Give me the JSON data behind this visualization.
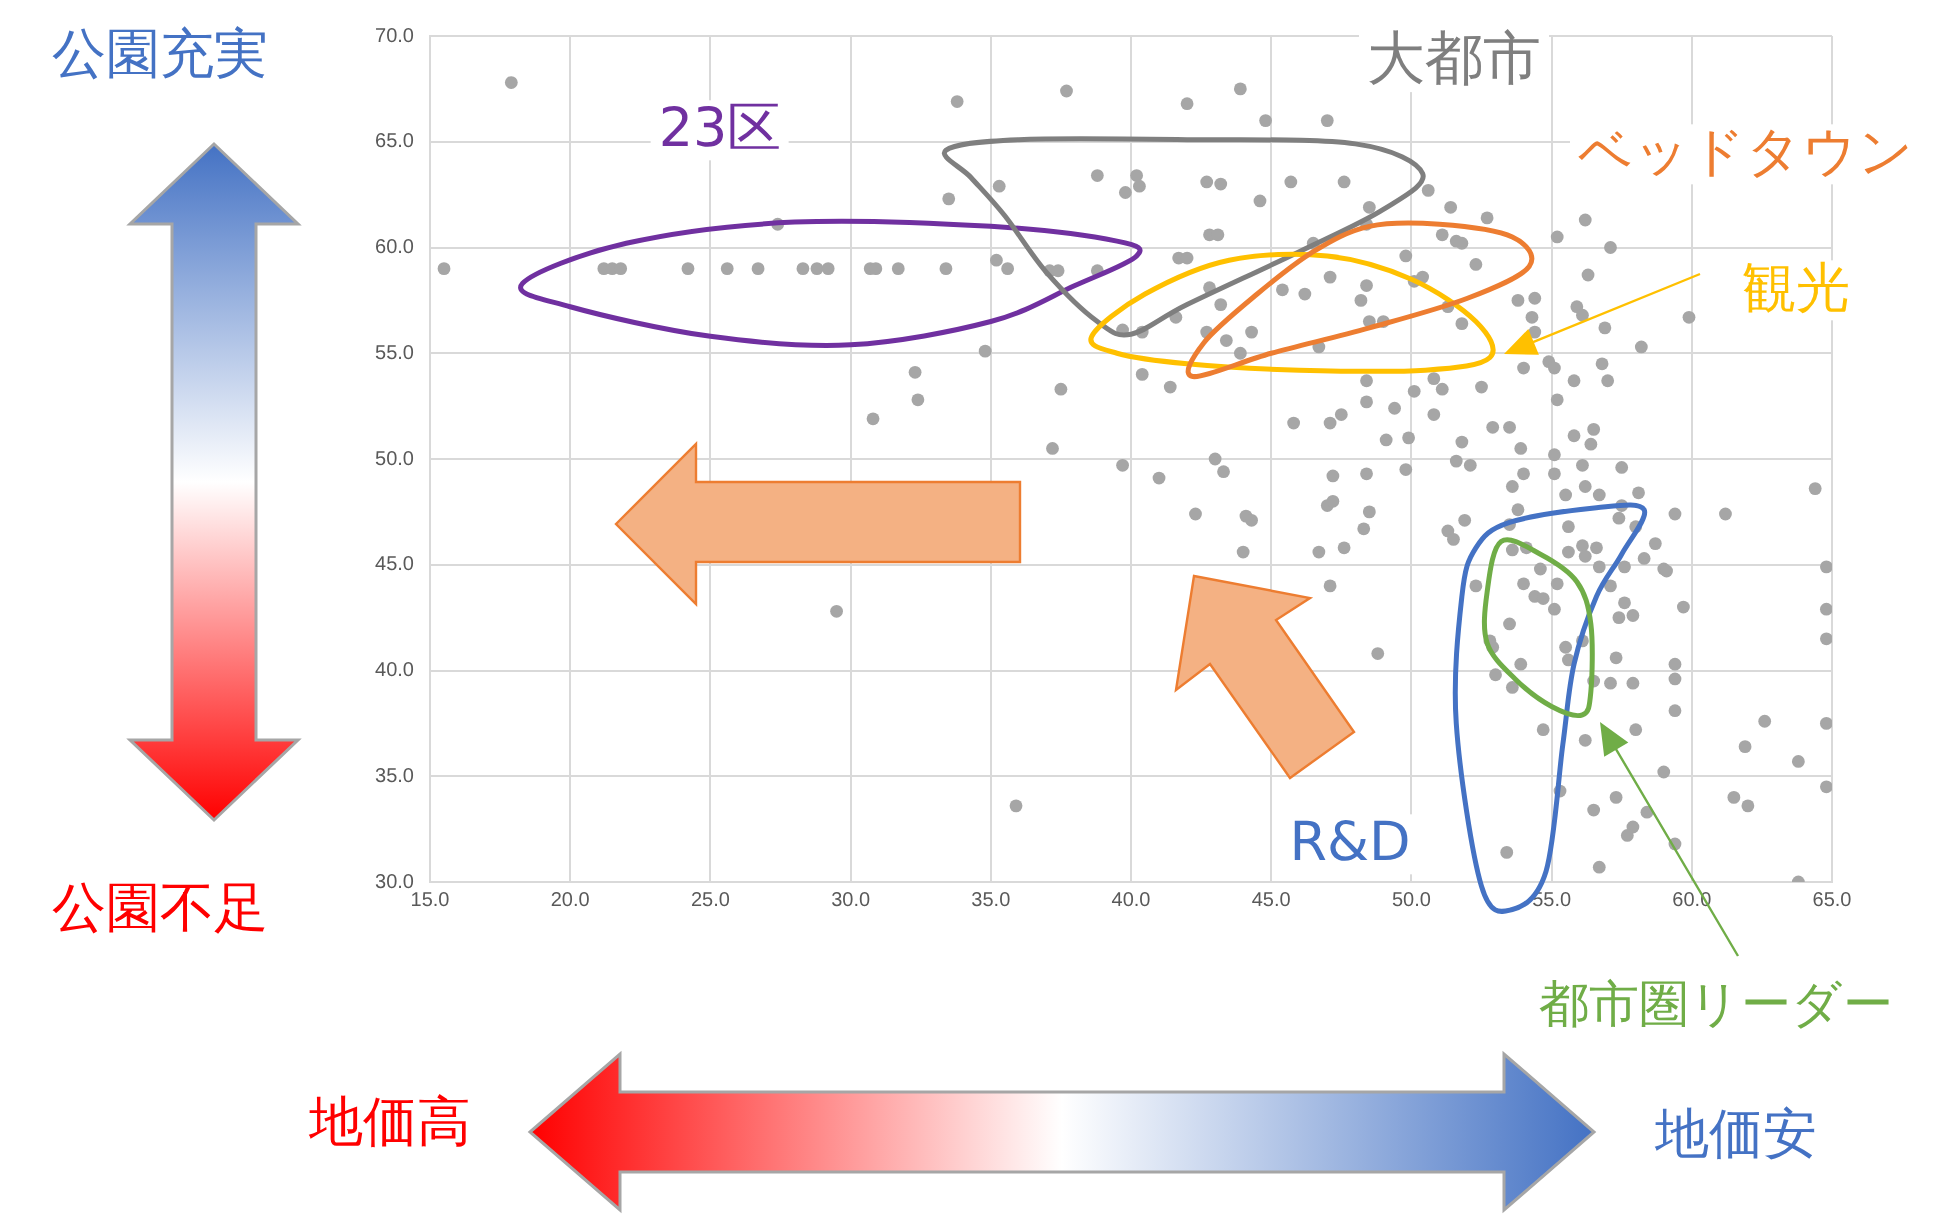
{
  "chart_data": {
    "type": "scatter",
    "color": "#a6a6a6",
    "marker": "circle",
    "grid": true,
    "xlim": [
      15,
      65
    ],
    "ylim": [
      30,
      70
    ],
    "xticks": [
      {
        "value": 15,
        "label": "15.0"
      },
      {
        "value": 20,
        "label": "20.0"
      },
      {
        "value": 25,
        "label": "25.0"
      },
      {
        "value": 30,
        "label": "30.0"
      },
      {
        "value": 35,
        "label": "35.0"
      },
      {
        "value": 40,
        "label": "40.0"
      },
      {
        "value": 45,
        "label": "45.0"
      },
      {
        "value": 50,
        "label": "50.0"
      },
      {
        "value": 55,
        "label": "55.0"
      },
      {
        "value": 60,
        "label": "60.0"
      },
      {
        "value": 65,
        "label": "65.0"
      }
    ],
    "yticks": [
      {
        "value": 30,
        "label": "30.0"
      },
      {
        "value": 35,
        "label": "35.0"
      },
      {
        "value": 40,
        "label": "40.0"
      },
      {
        "value": 45,
        "label": "45.0"
      },
      {
        "value": 50,
        "label": "50.0"
      },
      {
        "value": 55,
        "label": "55.0"
      },
      {
        "value": 60,
        "label": "60.0"
      },
      {
        "value": 65,
        "label": "65.0"
      },
      {
        "value": 70,
        "label": "70.0"
      }
    ],
    "annotations": [
      "公園充実",
      "公園不足",
      "地価高",
      "地価安",
      "大都市",
      "23区",
      "ベッドタウン",
      "観光",
      "R&D",
      "都市圏リーダー"
    ],
    "x": [
      17.9,
      15.5,
      21.2,
      21.5,
      21.8,
      24.2,
      25.6,
      26.7,
      28.3,
      28.8,
      29.2,
      30.7,
      30.9,
      31.7,
      33.4,
      35.6,
      27.4,
      33.8,
      33.5,
      35.3,
      35.2,
      34.8,
      32.3,
      32.4,
      30.8,
      29.5,
      35.9,
      37.7,
      42.0,
      43.9,
      44.8,
      47.0,
      38.8,
      40.2,
      39.8,
      40.3,
      42.7,
      43.2,
      45.7,
      47.6,
      44.6,
      48.5,
      50.6,
      51.4,
      52.7,
      56.2,
      48.4,
      42.8,
      43.1,
      46.5,
      51.1,
      51.6,
      51.8,
      55.2,
      57.1,
      41.7,
      42.0,
      37.1,
      37.4,
      38.8,
      49.8,
      52.3,
      56.3,
      42.8,
      45.4,
      47.1,
      46.2,
      48.4,
      50.1,
      50.4,
      43.2,
      48.2,
      51.3,
      53.8,
      54.4,
      55.9,
      56.1,
      54.3,
      41.6,
      49.0,
      48.5,
      39.7,
      40.4,
      42.7,
      44.3,
      51.8,
      54.4,
      56.9,
      59.9,
      43.4,
      43.9,
      46.7,
      58.2,
      40.4,
      41.4,
      37.5,
      48.4,
      50.8,
      51.1,
      52.5,
      50.1,
      54.0,
      54.9,
      55.1,
      55.8,
      56.8,
      57.0,
      55.2,
      48.4,
      49.4,
      50.8,
      45.8,
      47.1,
      47.5,
      52.9,
      53.5,
      55.8,
      56.5,
      56.4,
      37.2,
      49.1,
      49.9,
      51.8,
      53.9,
      55.1,
      43.0,
      39.7,
      41.0,
      43.3,
      47.2,
      48.4,
      49.8,
      51.6,
      52.1,
      56.1,
      57.5,
      53.6,
      54.0,
      55.1,
      56.2,
      56.7,
      58.1,
      55.5,
      64.4,
      42.3,
      44.1,
      44.3,
      44.0,
      47.0,
      47.2,
      48.5,
      48.3,
      46.7,
      47.6,
      47.1,
      48.8,
      51.3,
      51.5,
      51.9,
      53.5,
      53.8,
      55.6,
      57.5,
      57.4,
      58.0,
      59.4,
      61.2,
      64.8,
      52.3,
      53.6,
      54.1,
      54.6,
      55.2,
      55.6,
      56.1,
      56.6,
      56.7,
      56.2,
      57.6,
      58.3,
      58.7,
      59.0,
      59.1,
      54.0,
      54.4,
      54.7,
      55.1,
      53.5,
      57.1,
      57.6,
      57.9,
      57.4,
      59.7,
      64.8,
      55.5,
      55.6,
      53.9,
      52.9,
      52.8,
      56.1,
      56.5,
      57.1,
      57.3,
      57.9,
      59.4,
      59.4,
      64.8,
      53.6,
      53.0,
      59.4,
      54.7,
      56.2,
      58.0,
      62.6,
      61.9,
      63.8,
      64.8,
      59.0,
      55.3,
      57.3,
      58.4,
      56.5,
      61.5,
      62.0,
      64.8,
      57.9,
      57.7,
      59.4,
      53.4,
      56.7,
      63.8
    ],
    "values": [
      67.8,
      59.0,
      59.0,
      59.0,
      59.0,
      59.0,
      59.0,
      59.0,
      59.0,
      59.0,
      59.0,
      59.0,
      59.0,
      59.0,
      59.0,
      59.0,
      61.1,
      66.9,
      62.3,
      62.9,
      59.4,
      55.1,
      54.1,
      52.8,
      51.9,
      42.8,
      33.6,
      67.4,
      66.8,
      67.5,
      66.0,
      66.0,
      63.4,
      63.4,
      62.6,
      62.9,
      63.1,
      63.0,
      63.1,
      63.1,
      62.2,
      61.9,
      62.7,
      61.9,
      61.4,
      61.3,
      61.1,
      60.6,
      60.6,
      60.2,
      60.6,
      60.3,
      60.2,
      60.5,
      60.0,
      59.5,
      59.5,
      58.9,
      58.9,
      58.9,
      59.6,
      59.2,
      58.7,
      58.1,
      58.0,
      58.6,
      57.8,
      58.2,
      58.4,
      58.6,
      57.3,
      57.5,
      57.2,
      57.5,
      57.6,
      57.2,
      56.8,
      56.7,
      56.7,
      56.5,
      56.5,
      56.1,
      56.0,
      56.0,
      56.0,
      56.4,
      56.0,
      56.2,
      56.7,
      55.6,
      55.0,
      55.3,
      55.3,
      54.0,
      53.4,
      53.3,
      53.7,
      53.8,
      53.3,
      53.4,
      53.2,
      54.3,
      54.6,
      54.3,
      53.7,
      54.5,
      53.7,
      52.8,
      52.7,
      52.4,
      52.1,
      51.7,
      51.7,
      52.1,
      51.5,
      51.5,
      51.1,
      51.4,
      50.7,
      50.5,
      50.9,
      51.0,
      50.8,
      50.5,
      50.2,
      50.0,
      49.7,
      49.1,
      49.4,
      49.2,
      49.3,
      49.5,
      49.9,
      49.7,
      49.7,
      49.6,
      48.7,
      49.3,
      49.3,
      48.7,
      48.3,
      48.4,
      48.3,
      48.6,
      47.4,
      47.3,
      47.1,
      45.6,
      47.8,
      48.0,
      47.5,
      46.7,
      45.6,
      45.8,
      44.0,
      40.8,
      46.6,
      46.2,
      47.1,
      46.9,
      47.6,
      46.8,
      47.8,
      47.2,
      46.8,
      47.4,
      47.4,
      44.9,
      44.0,
      45.7,
      45.8,
      44.8,
      44.1,
      45.6,
      45.9,
      45.8,
      44.9,
      45.4,
      44.9,
      45.3,
      46.0,
      44.8,
      44.7,
      44.1,
      43.5,
      43.4,
      42.9,
      42.2,
      44.0,
      43.2,
      42.6,
      42.5,
      43.0,
      42.9,
      41.1,
      40.5,
      40.3,
      41.1,
      41.4,
      41.4,
      39.5,
      39.4,
      40.6,
      39.4,
      40.3,
      39.6,
      41.5,
      39.2,
      39.8,
      38.1,
      37.2,
      36.7,
      37.2,
      37.6,
      36.4,
      35.7,
      37.5,
      35.2,
      34.3,
      34.0,
      33.3,
      33.4,
      34.0,
      33.6,
      34.5,
      32.6,
      32.2,
      31.8,
      31.4,
      30.7,
      30.0
    ]
  }
}
